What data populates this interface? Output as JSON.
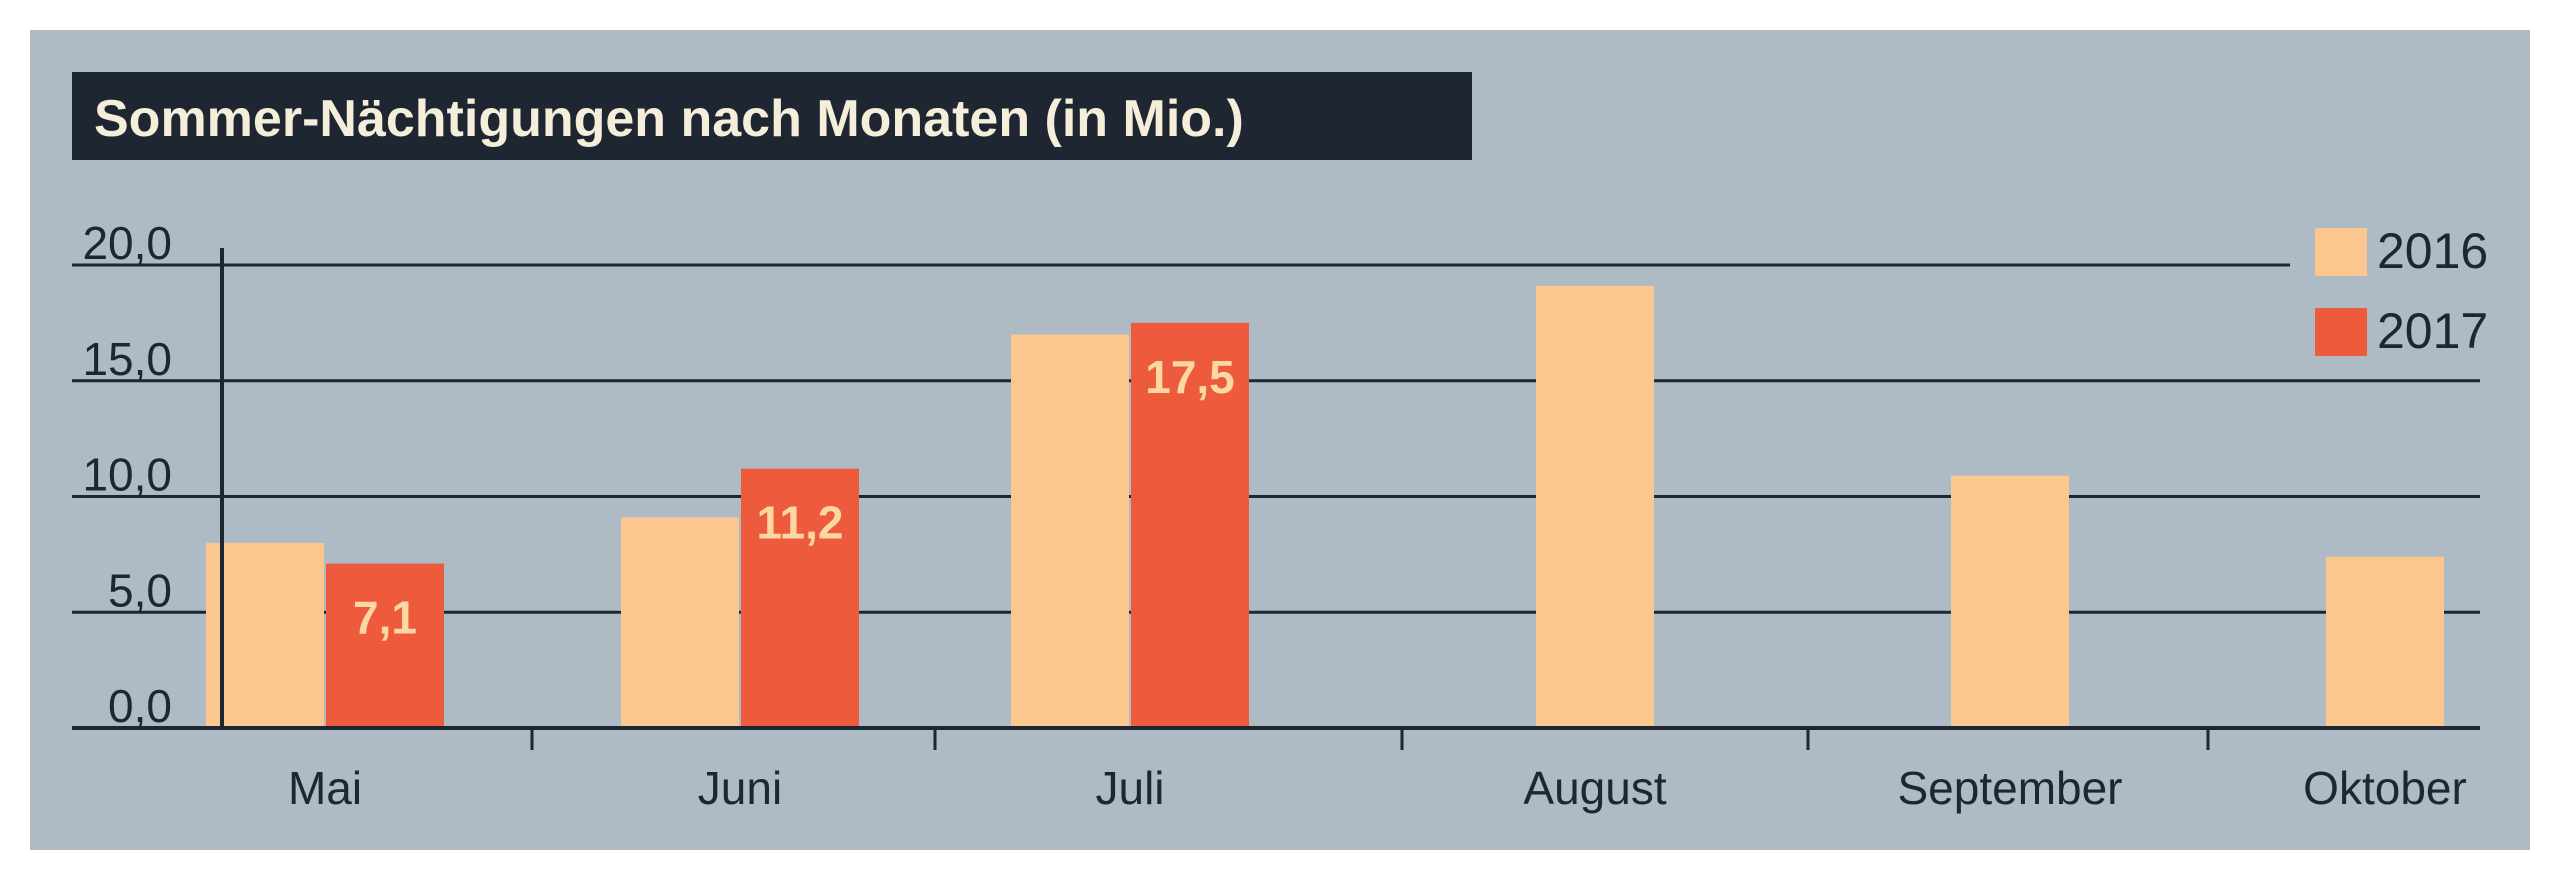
{
  "chart_data": {
    "type": "bar",
    "title": "Sommer-Nächtigungen nach Monaten (in Mio.)",
    "categories": [
      "Mai",
      "Juni",
      "Juli",
      "August",
      "September",
      "Oktober"
    ],
    "series": [
      {
        "name": "2016",
        "color": "#fcc68f",
        "values": [
          8.0,
          9.1,
          17.0,
          19.1,
          10.9,
          7.4
        ]
      },
      {
        "name": "2017",
        "color": "#ee5a3c",
        "values": [
          7.1,
          11.2,
          17.5,
          null,
          null,
          null
        ]
      }
    ],
    "data_labels": {
      "2017": [
        "7,1",
        "11,2",
        "17,5",
        null,
        null,
        null
      ]
    },
    "y_ticks": [
      {
        "value": 0,
        "label": "0,0"
      },
      {
        "value": 5,
        "label": "5,0"
      },
      {
        "value": 10,
        "label": "10,0"
      },
      {
        "value": 15,
        "label": "15,0"
      },
      {
        "value": 20,
        "label": "20,0"
      }
    ],
    "ylim": [
      0,
      20
    ],
    "grid": true,
    "legend_position": "top-right",
    "colors": {
      "background": "#aebac4",
      "title_box": "#1e2731",
      "text": "#1e2731"
    }
  }
}
